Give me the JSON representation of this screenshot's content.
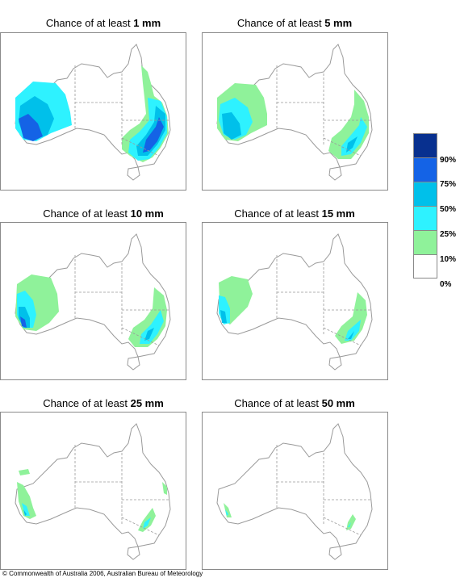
{
  "panels": [
    {
      "prefix": "Chance of at least ",
      "amount": "1 mm"
    },
    {
      "prefix": "Chance of at least ",
      "amount": "5 mm"
    },
    {
      "prefix": "Chance of at least ",
      "amount": "10 mm"
    },
    {
      "prefix": "Chance of at least ",
      "amount": "15 mm"
    },
    {
      "prefix": "Chance of at least ",
      "amount": "25 mm"
    },
    {
      "prefix": "Chance of at least ",
      "amount": "50 mm"
    }
  ],
  "legend": {
    "labels": [
      "90%",
      "75%",
      "50%",
      "25%",
      "10%",
      "0%"
    ],
    "colors": [
      "#08308f",
      "#1463e6",
      "#00c0ea",
      "#2ef2ff",
      "#8ff29a",
      "#ffffff"
    ]
  },
  "footer": "© Commonwealth of Australia 2006, Australian Bureau of Meteorology"
}
